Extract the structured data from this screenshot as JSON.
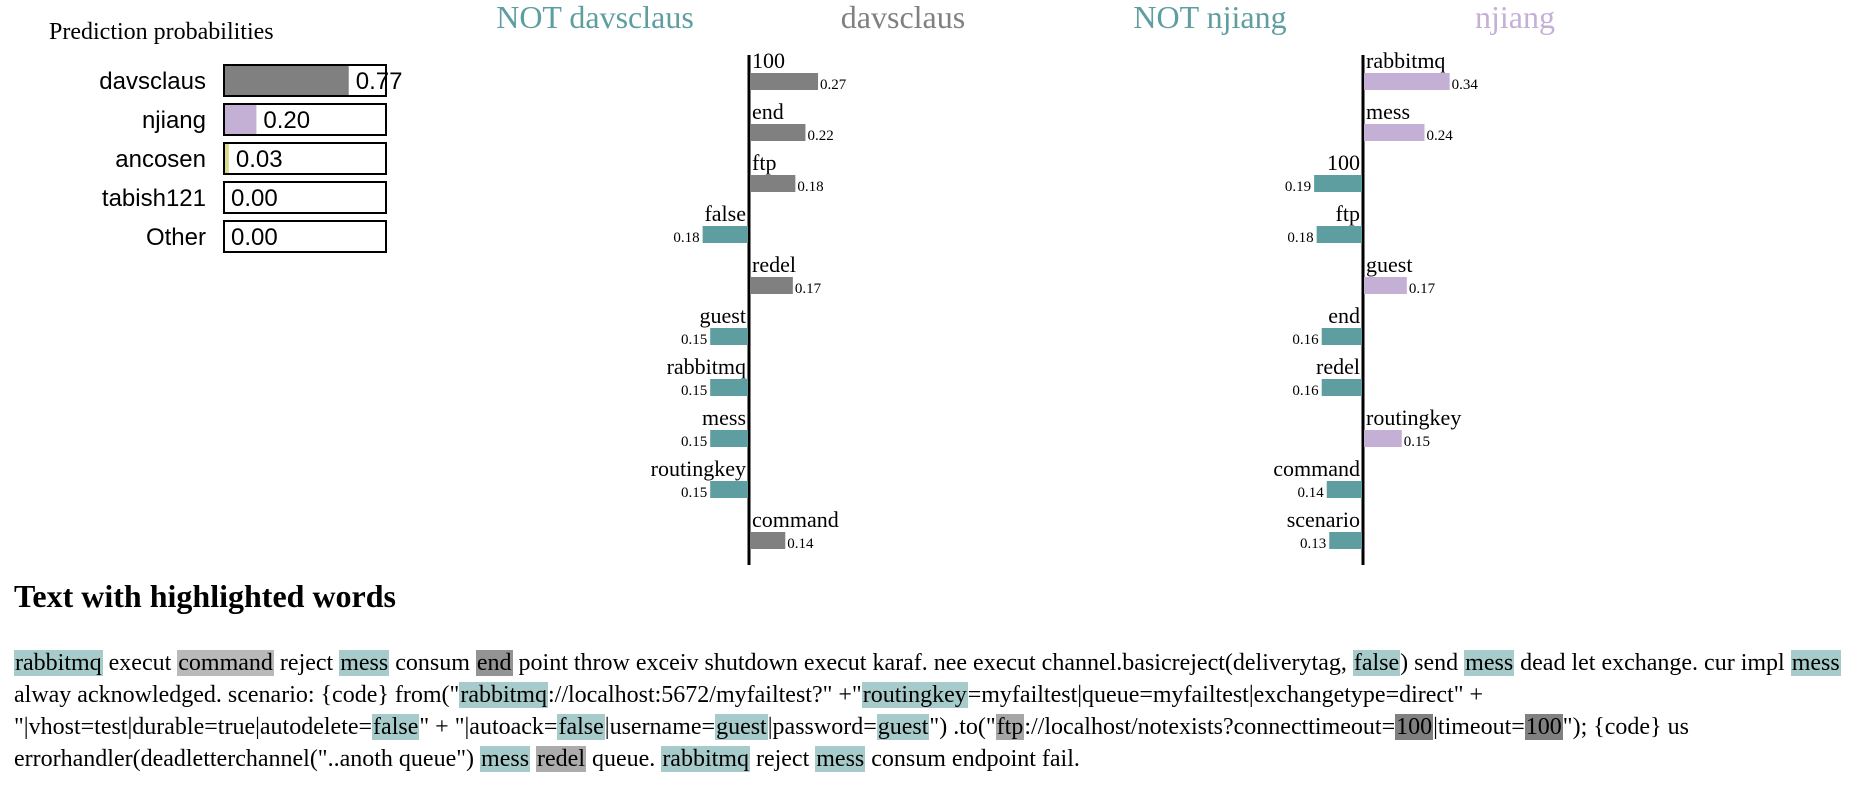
{
  "colors": {
    "davsclaus": "#808080",
    "njiang": "#c5b0d5",
    "ancosen": "#dbdb8d",
    "not_class": "#5f9ea0",
    "text_not": "#5f9ea0",
    "text_davsclaus": "#808080",
    "text_njiang": "#c5b0d5"
  },
  "prediction": {
    "title": "Prediction probabilities"
  },
  "explanations": {
    "left": {
      "not_label": "NOT davsclaus",
      "label": "davsclaus"
    },
    "right": {
      "not_label": "NOT njiang",
      "label": "njiang"
    }
  },
  "text_section": {
    "title": "Text with highlighted words"
  },
  "chart_data": [
    {
      "type": "bar",
      "title": "Prediction probabilities",
      "categories": [
        "davsclaus",
        "njiang",
        "ancosen",
        "tabish121",
        "Other"
      ],
      "values": [
        0.77,
        0.2,
        0.03,
        0.0,
        0.0
      ],
      "colors": [
        "#808080",
        "#c5b0d5",
        "#dbdb8d",
        "#808080",
        "#808080"
      ],
      "xlim": [
        0,
        1
      ]
    },
    {
      "type": "bar",
      "orientation": "horizontal-diverging",
      "negative_label": "NOT davsclaus",
      "positive_label": "davsclaus",
      "words": [
        "100",
        "end",
        "ftp",
        "false",
        "redel",
        "guest",
        "rabbitmq",
        "mess",
        "routingkey",
        "command"
      ],
      "values": [
        0.27,
        0.22,
        0.18,
        -0.18,
        0.17,
        -0.15,
        -0.15,
        -0.15,
        -0.15,
        0.14
      ],
      "labels": [
        "0.27",
        "0.22",
        "0.18",
        "0.18",
        "0.17",
        "0.15",
        "0.15",
        "0.15",
        "0.15",
        "0.14"
      ]
    },
    {
      "type": "bar",
      "orientation": "horizontal-diverging",
      "negative_label": "NOT njiang",
      "positive_label": "njiang",
      "words": [
        "rabbitmq",
        "mess",
        "100",
        "ftp",
        "guest",
        "end",
        "redel",
        "routingkey",
        "command",
        "scenario"
      ],
      "values": [
        0.34,
        0.24,
        -0.19,
        -0.18,
        0.17,
        -0.16,
        -0.16,
        0.15,
        -0.14,
        -0.13
      ],
      "labels": [
        "0.34",
        "0.24",
        "0.19",
        "0.18",
        "0.17",
        "0.16",
        "0.16",
        "0.15",
        "0.14",
        "0.13"
      ]
    }
  ],
  "highlighted_text": [
    {
      "t": "rabbitmq",
      "c": "not"
    },
    {
      "t": " execut "
    },
    {
      "t": "command",
      "c": "pos",
      "o": 0.55
    },
    {
      "t": " reject "
    },
    {
      "t": "mess",
      "c": "not"
    },
    {
      "t": " consum "
    },
    {
      "t": "end",
      "c": "pos",
      "o": 0.85
    },
    {
      "t": " point throw exceiv shutdown execut karaf. nee execut channel.basicreject(deliverytag, "
    },
    {
      "t": "false",
      "c": "not"
    },
    {
      "t": ") send "
    },
    {
      "t": "mess",
      "c": "not"
    },
    {
      "t": " dead let exchange. cur impl "
    },
    {
      "t": "mess",
      "c": "not"
    },
    {
      "t": " alway acknowledged. scenario: {code} from(\""
    },
    {
      "t": "rabbitmq",
      "c": "not"
    },
    {
      "t": "://localhost:5672/myfailtest?\" +\""
    },
    {
      "t": "routingkey",
      "c": "not"
    },
    {
      "t": "=myfailtest|queue=myfailtest|exchangetype=direct\" + \"|vhost=test|durable=true|autodelete="
    },
    {
      "t": "false",
      "c": "not"
    },
    {
      "t": "\" + \"|autoack="
    },
    {
      "t": "false",
      "c": "not"
    },
    {
      "t": "|username="
    },
    {
      "t": "guest",
      "c": "not"
    },
    {
      "t": "|password="
    },
    {
      "t": "guest",
      "c": "not"
    },
    {
      "t": "\") .to(\""
    },
    {
      "t": "ftp",
      "c": "pos",
      "o": 0.7
    },
    {
      "t": "://localhost/notexists?connecttimeout="
    },
    {
      "t": "100",
      "c": "pos",
      "o": 1.0
    },
    {
      "t": "|timeout="
    },
    {
      "t": "100",
      "c": "pos",
      "o": 1.0
    },
    {
      "t": "\"); {code} us errorhandler(deadletterchannel(\"..anoth queue\") "
    },
    {
      "t": "mess",
      "c": "not"
    },
    {
      "t": " "
    },
    {
      "t": "redel",
      "c": "pos",
      "o": 0.65
    },
    {
      "t": " queue. "
    },
    {
      "t": "rabbitmq",
      "c": "not"
    },
    {
      "t": " reject "
    },
    {
      "t": "mess",
      "c": "not"
    },
    {
      "t": " consum endpoint fail."
    }
  ]
}
